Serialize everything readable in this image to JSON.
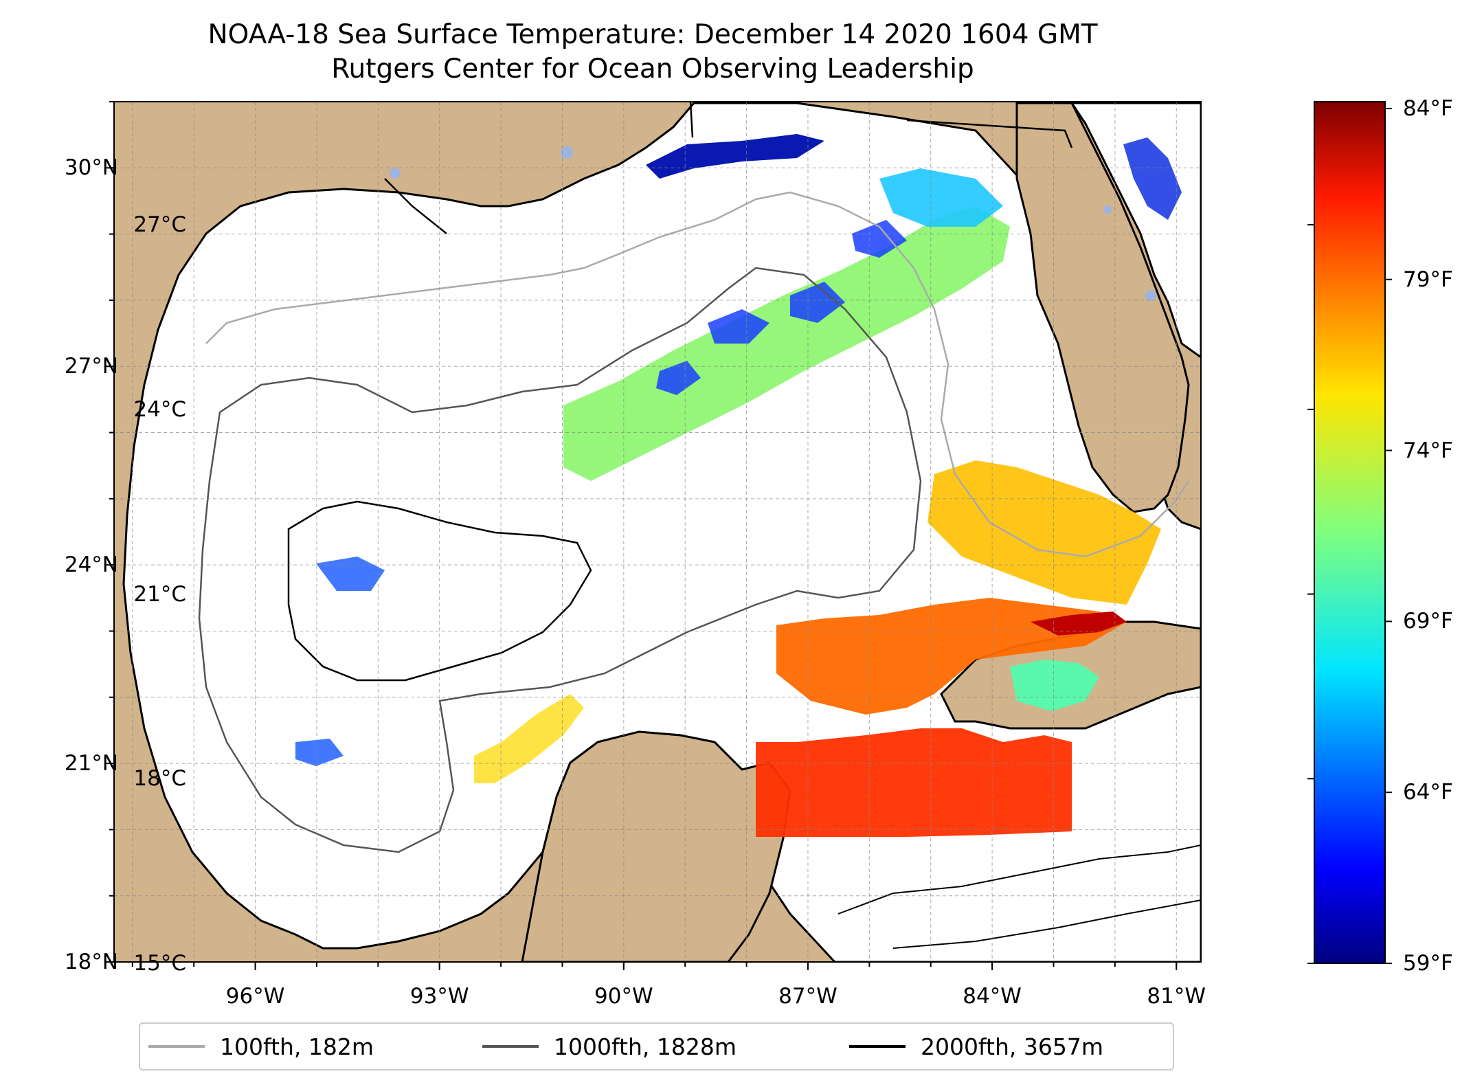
{
  "title_line1": "NOAA-18 Sea Surface Temperature: December 14 2020 1604 GMT",
  "title_line2": "Rutgers Center for Ocean Observing Leadership",
  "map": {
    "lon_range": [
      -98.3,
      -80.6
    ],
    "lat_range": [
      18.0,
      31.0
    ],
    "lat_ticks": [
      {
        "value": 30,
        "label": "30°N"
      },
      {
        "value": 27,
        "label": "27°N"
      },
      {
        "value": 24,
        "label": "24°N"
      },
      {
        "value": 21,
        "label": "21°N"
      },
      {
        "value": 18,
        "label": "18°N"
      }
    ],
    "lon_ticks": [
      {
        "value": -96,
        "label": "96°W"
      },
      {
        "value": -93,
        "label": "93°W"
      },
      {
        "value": -90,
        "label": "90°W"
      },
      {
        "value": -87,
        "label": "87°W"
      },
      {
        "value": -84,
        "label": "84°W"
      },
      {
        "value": -81,
        "label": "81°W"
      }
    ],
    "grid": true,
    "colors": {
      "land": "#d2b48c",
      "water": "#ffffff",
      "lakes": "#9db4e0",
      "coast": "#000000"
    }
  },
  "colorbar": {
    "range_c": [
      15.0,
      29.0
    ],
    "celsius_ticks": [
      {
        "value": 27,
        "label": "27°C"
      },
      {
        "value": 24,
        "label": "24°C"
      },
      {
        "value": 21,
        "label": "21°C"
      },
      {
        "value": 18,
        "label": "18°C"
      },
      {
        "value": 15,
        "label": "15°C"
      }
    ],
    "fahrenheit_ticks": [
      {
        "value": 84,
        "label": "84°F"
      },
      {
        "value": 79,
        "label": "79°F"
      },
      {
        "value": 74,
        "label": "74°F"
      },
      {
        "value": 69,
        "label": "69°F"
      },
      {
        "value": 64,
        "label": "64°F"
      },
      {
        "value": 59,
        "label": "59°F"
      }
    ],
    "colormap": "jet"
  },
  "legend": {
    "items": [
      {
        "label": "100fth, 182m",
        "color": "#aaaaaa"
      },
      {
        "label": "1000fth, 1828m",
        "color": "#555555"
      },
      {
        "label": "2000fth, 3657m",
        "color": "#000000"
      }
    ],
    "placement": "bottom-center"
  }
}
